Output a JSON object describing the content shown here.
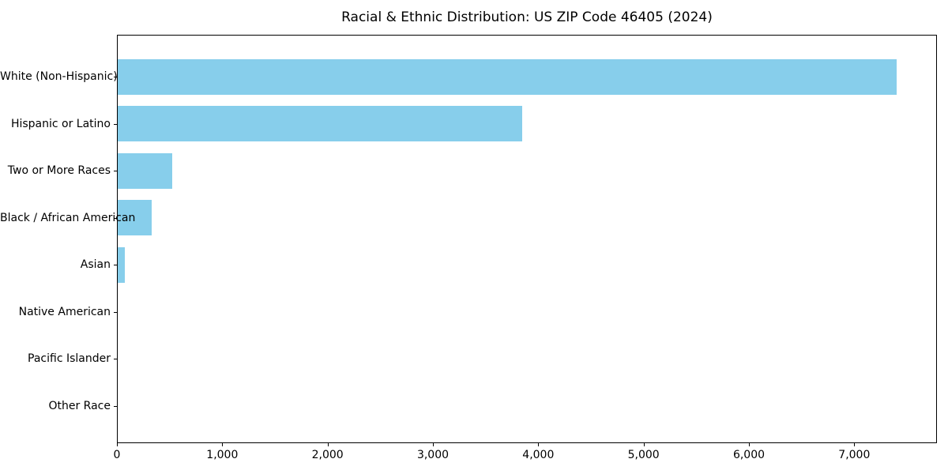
{
  "chart_data": {
    "type": "bar",
    "orientation": "horizontal",
    "title": "Racial & Ethnic Distribution: US ZIP Code 46405 (2024)",
    "categories": [
      "White (Non-Hispanic)",
      "Hispanic or Latino",
      "Two or More Races",
      "Black / African American",
      "Asian",
      "Native American",
      "Pacific Islander",
      "Other Race"
    ],
    "values": [
      7395,
      3840,
      515,
      320,
      70,
      0,
      0,
      0
    ],
    "xlabel": "",
    "ylabel": "",
    "xlim": [
      0,
      7770
    ],
    "x_ticks": [
      {
        "value": 0,
        "label": "0"
      },
      {
        "value": 1000,
        "label": "1,000"
      },
      {
        "value": 2000,
        "label": "2,000"
      },
      {
        "value": 3000,
        "label": "3,000"
      },
      {
        "value": 4000,
        "label": "4,000"
      },
      {
        "value": 5000,
        "label": "5,000"
      },
      {
        "value": 6000,
        "label": "6,000"
      },
      {
        "value": 7000,
        "label": "7,000"
      }
    ],
    "bar_color": "#87CEEB",
    "background_color": "#FFFFFF",
    "spine_color": "#000000",
    "grid": false,
    "legend": null
  },
  "layout_note_values_are_data_not_layout": null
}
